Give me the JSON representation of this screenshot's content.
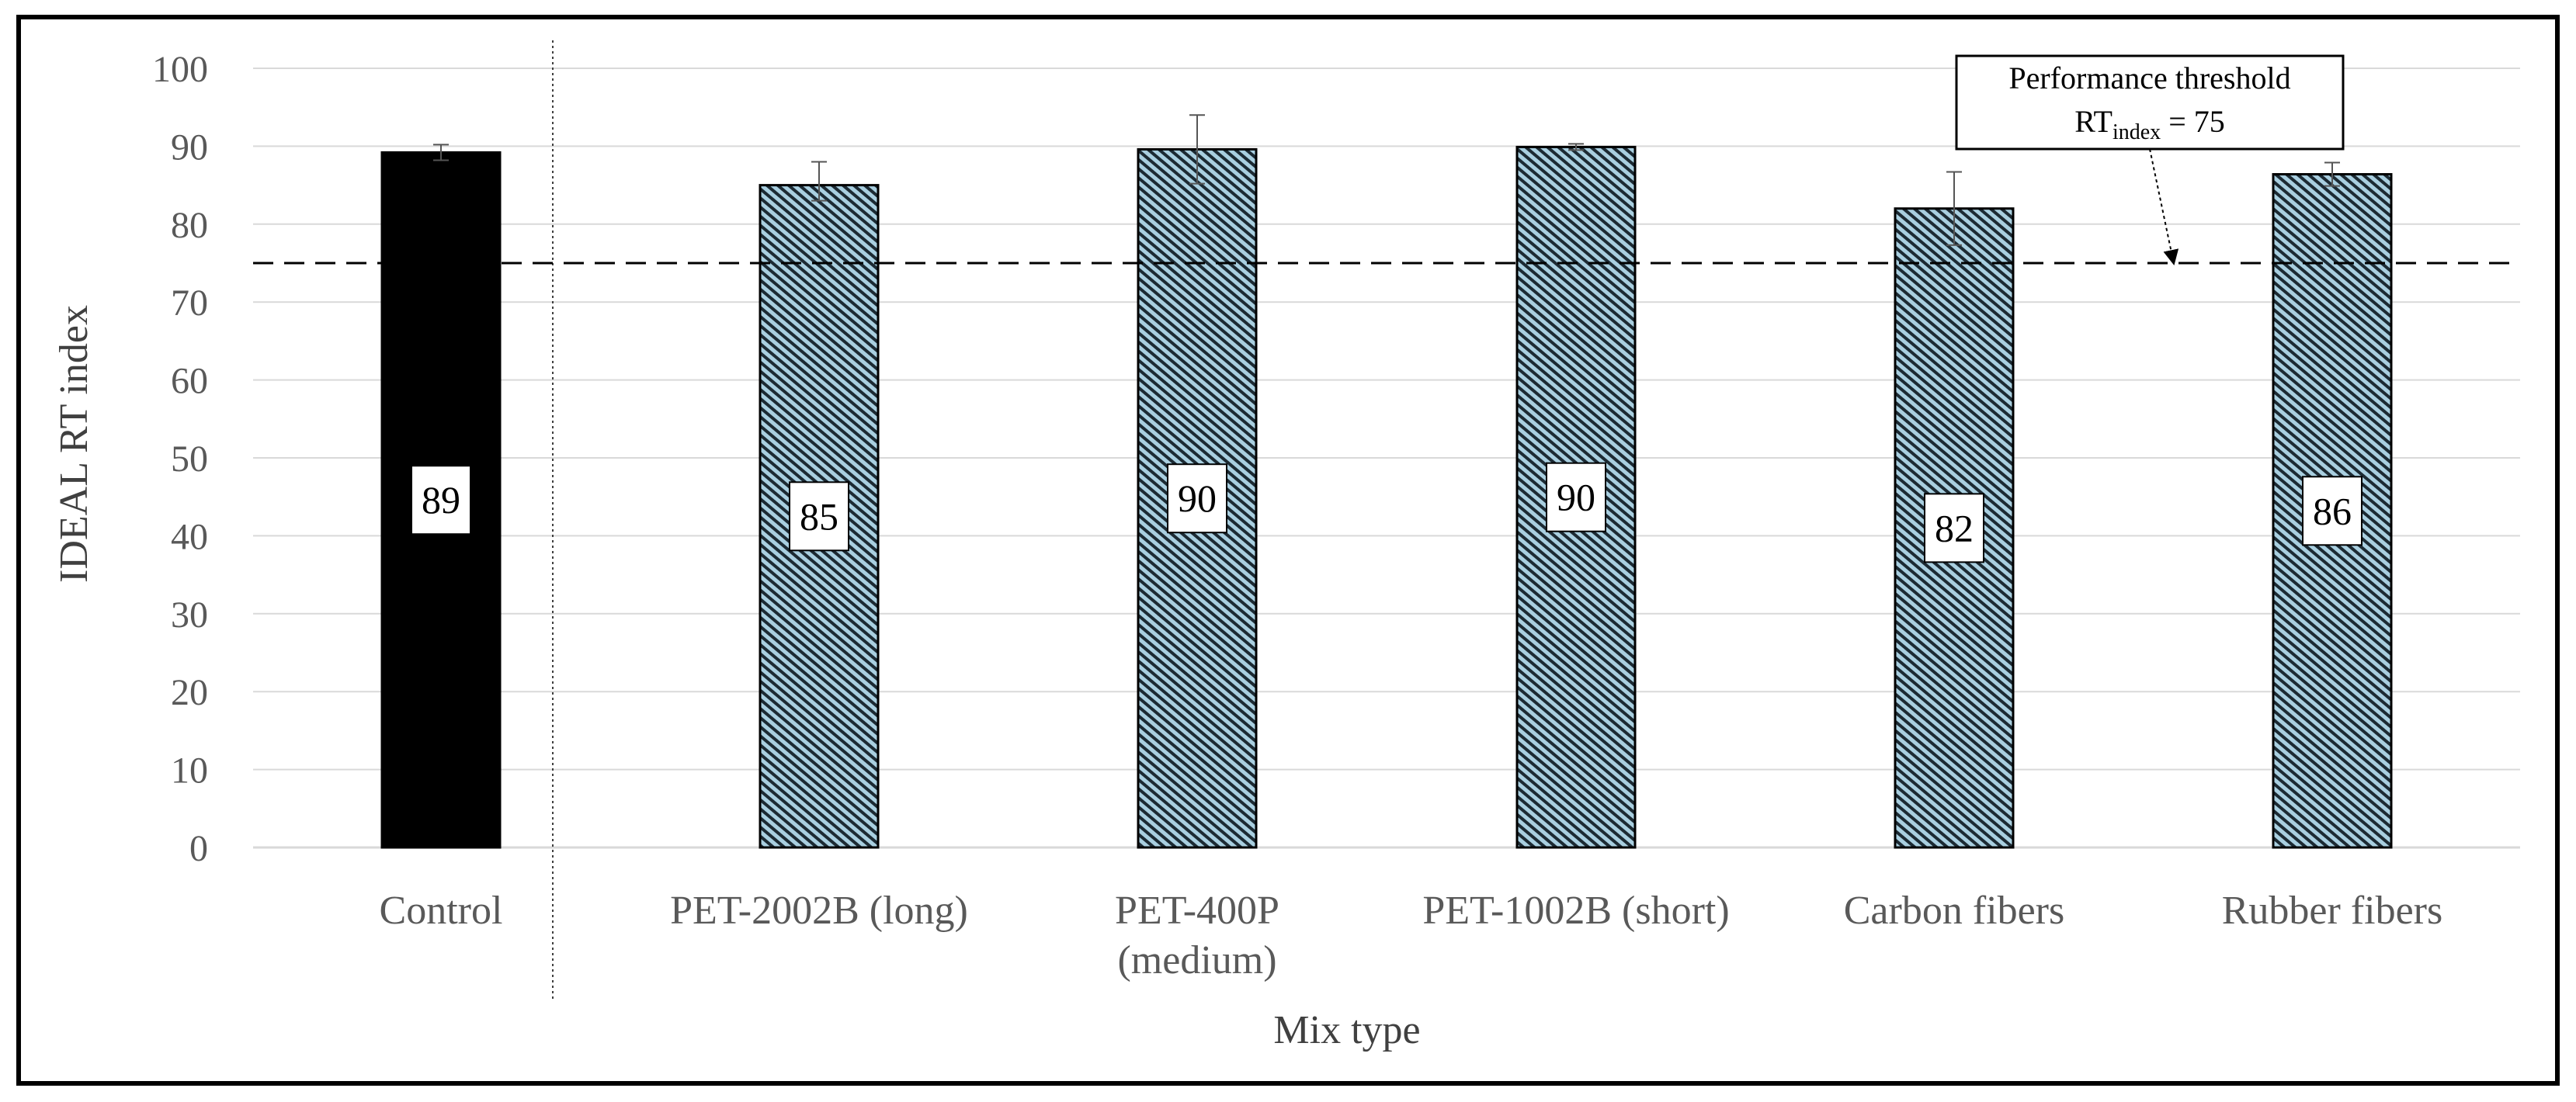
{
  "chart_data": {
    "type": "bar",
    "title": "",
    "xlabel": "Mix type",
    "ylabel": "IDEAL RT index",
    "ylim": [
      0,
      100
    ],
    "yticks": [
      0,
      10,
      20,
      30,
      40,
      50,
      60,
      70,
      80,
      90,
      100
    ],
    "grid": true,
    "categories": [
      [
        "Control"
      ],
      [
        "PET-2002B (long)"
      ],
      [
        "PET-400P",
        "(medium)"
      ],
      [
        "PET-1002B (short)"
      ],
      [
        "Carbon fibers"
      ],
      [
        "Rubber fibers"
      ]
    ],
    "values": [
      89.2,
      85.0,
      89.6,
      89.9,
      82.0,
      86.4
    ],
    "error_plus": [
      1.0,
      3.0,
      4.4,
      0.4,
      4.7,
      1.5
    ],
    "error_minus": [
      1.0,
      2.0,
      4.4,
      0.4,
      4.7,
      1.5
    ],
    "data_labels": [
      "89",
      "85",
      "90",
      "90",
      "82",
      "86"
    ],
    "bar_styles": [
      "solid-black",
      "hatched",
      "hatched",
      "hatched",
      "hatched",
      "hatched"
    ],
    "colors": {
      "control": "#000000",
      "hatch_fill": "#a9cfe0",
      "hatch_line": "#1c2a33",
      "grid": "#d9d9d9",
      "axis_text": "#595959"
    },
    "threshold": {
      "value": 75,
      "line_style": "dashed",
      "annotation_line1": "Performance threshold",
      "annotation_rt": "RT",
      "annotation_sub": "index",
      "annotation_eq": " = 75"
    }
  }
}
